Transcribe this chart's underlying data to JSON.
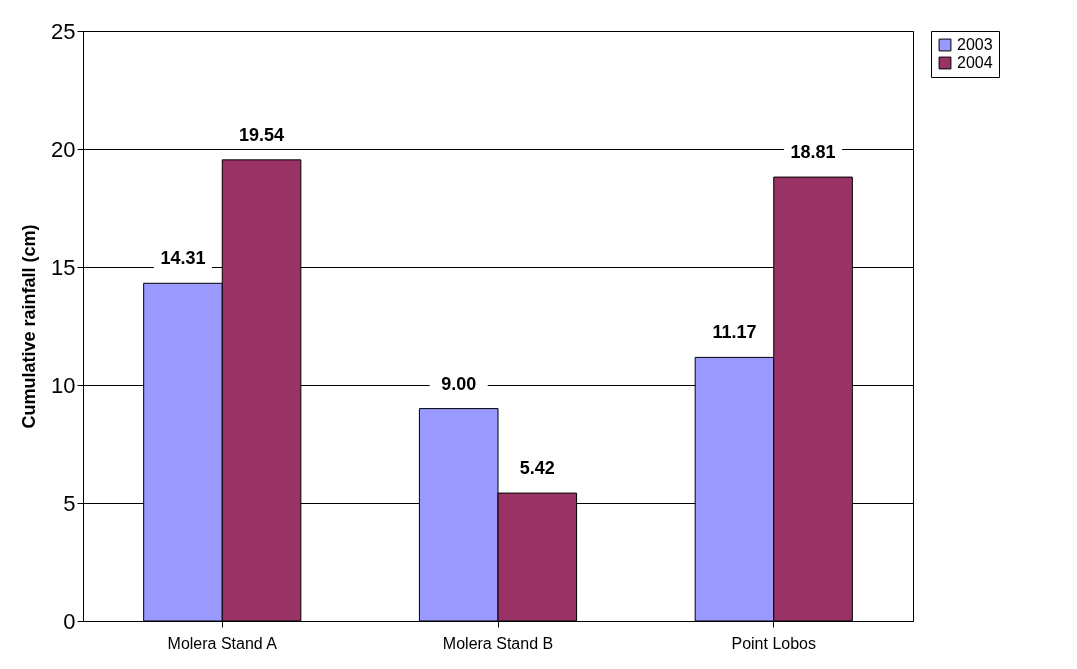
{
  "chart_data": {
    "type": "bar",
    "ylabel": "Cumulative rainfall (cm)",
    "categories": [
      "Molera Stand A",
      "Molera Stand B",
      "Point Lobos"
    ],
    "series": [
      {
        "name": "2003",
        "color": "#9999ff",
        "values": [
          14.31,
          9.0,
          11.17
        ],
        "value_labels": [
          "14.31",
          "9.00",
          "11.17"
        ]
      },
      {
        "name": "2004",
        "color": "#993366",
        "values": [
          19.54,
          5.42,
          18.81
        ],
        "value_labels": [
          "19.54",
          "5.42",
          "18.81"
        ]
      }
    ],
    "ylim": [
      0,
      25
    ],
    "yticks": [
      0,
      5,
      10,
      15,
      20,
      25
    ],
    "grid": "y",
    "legend": "top right"
  }
}
